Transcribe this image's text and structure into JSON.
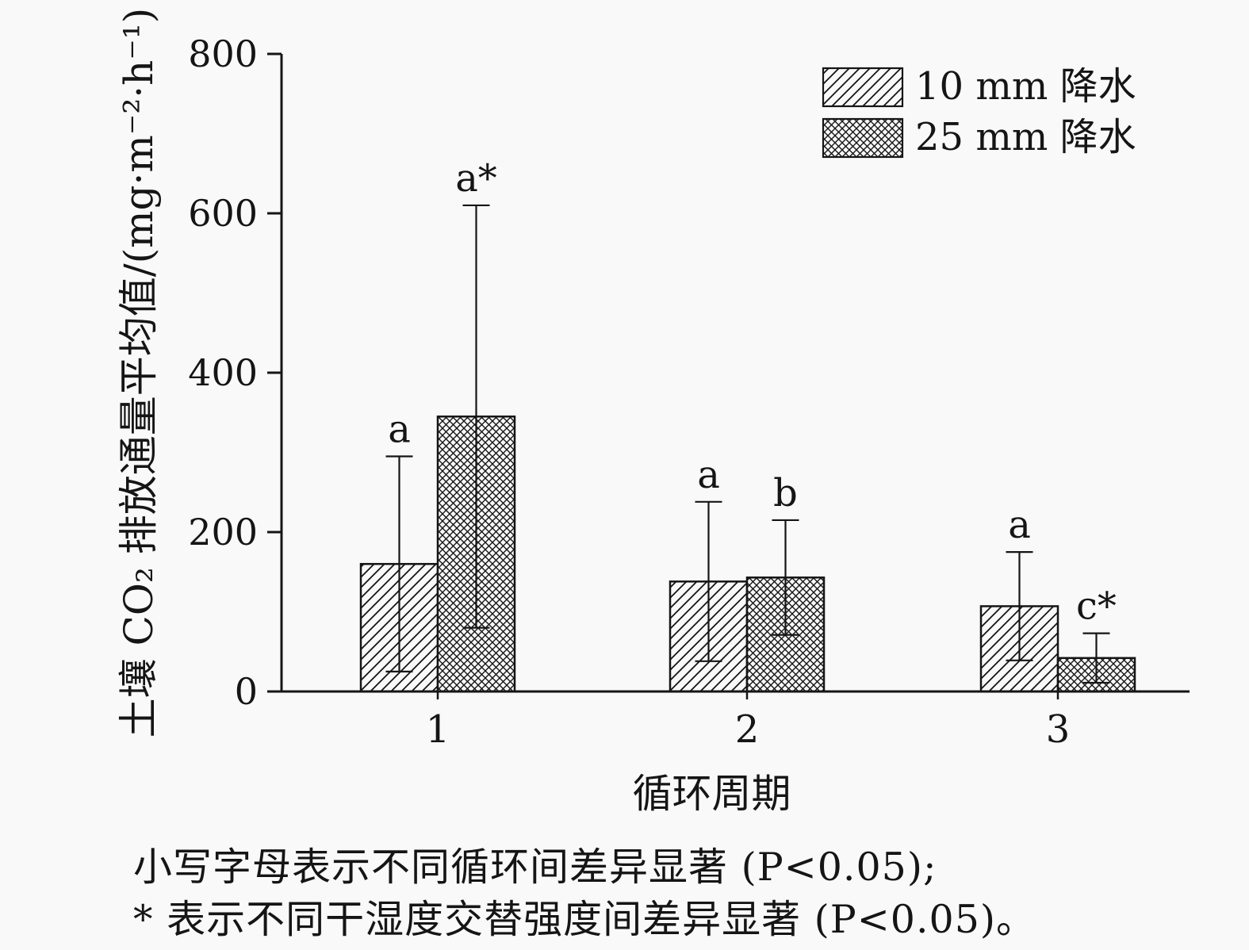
{
  "figure": {
    "ylabel": "土壤 CO₂ 排放通量平均值/(mg·m⁻²·h⁻¹)",
    "xlabel": "循环周期",
    "footnote_line1": "小写字母表示不同循环间差异显著 (P<0.05);",
    "footnote_line2": "* 表示不同干湿度交替强度间差异显著 (P<0.05)。"
  },
  "chart_data": {
    "type": "bar",
    "title": "",
    "categories": [
      "1",
      "2",
      "3"
    ],
    "series": [
      {
        "name": "10 mm 降水",
        "hatch": "diagonal",
        "values": [
          160,
          138,
          107
        ],
        "errors": [
          135,
          100,
          68
        ],
        "sig_labels": [
          "a",
          "a",
          "a"
        ]
      },
      {
        "name": "25 mm 降水",
        "hatch": "crosshatch",
        "values": [
          345,
          143,
          42
        ],
        "errors": [
          265,
          72,
          31
        ],
        "sig_labels": [
          "a*",
          "b",
          "c*"
        ]
      }
    ],
    "xlabel": "循环周期",
    "ylabel": "土壤 CO₂ 排放通量平均值/(mg·m⁻²·h⁻¹)",
    "ylim": [
      0,
      800
    ],
    "yticks": [
      0,
      200,
      400,
      600,
      800
    ],
    "grid": false,
    "legend_position": "top-right",
    "bar_color": "#f9f9f9",
    "line_color": "#151515"
  }
}
